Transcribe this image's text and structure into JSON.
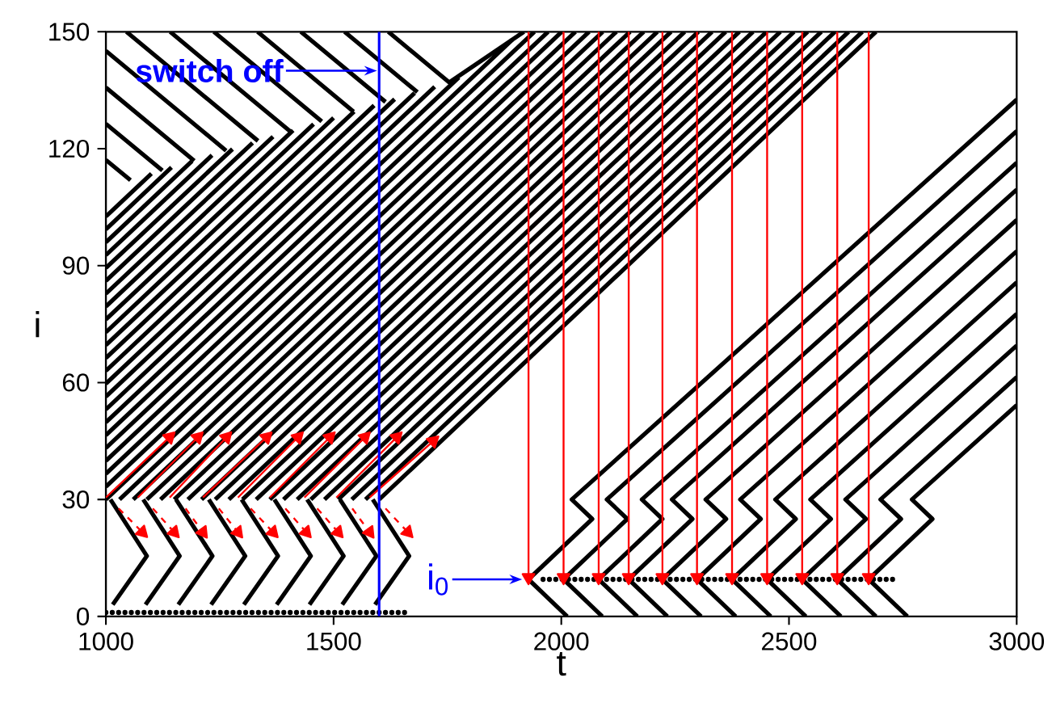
{
  "chart_data": {
    "type": "line",
    "xlabel": "t",
    "ylabel": "i",
    "xlim": [
      1000,
      3000
    ],
    "ylim": [
      0,
      150
    ],
    "xticks": [
      1000,
      1500,
      2000,
      2500,
      3000
    ],
    "yticks": [
      0,
      30,
      60,
      90,
      120,
      150
    ],
    "grid": false,
    "marker": "none",
    "ref_lines": [
      {
        "axis": "x",
        "value": 1600,
        "label": "switch off",
        "color": "#0000ff"
      }
    ],
    "annotations": [
      {
        "text": "i$_{0}$",
        "x": 1928,
        "y": 9.5
      }
    ],
    "series": [
      {
        "color": "#000000",
        "x": [
          1600,
          2691,
          null,
          1570,
          2661,
          null,
          1540,
          2631,
          null,
          1510,
          2601,
          null,
          1480,
          2571,
          null,
          1450,
          2541,
          null,
          1420,
          2511,
          null,
          1390,
          2481,
          null,
          1360,
          2451,
          null,
          1330,
          2421,
          null,
          1300,
          2391,
          null,
          1270,
          2361,
          null,
          1240,
          2331,
          null,
          1210,
          2301,
          null,
          1180,
          2271,
          null,
          1150,
          2241,
          null,
          1120,
          2211,
          null,
          1090,
          2181,
          null,
          1060,
          2151,
          null,
          1030,
          2121,
          null,
          1000,
          2091,
          null,
          1000,
          2061,
          null,
          1000,
          2031,
          null,
          1000,
          2001,
          null,
          1000,
          1971,
          null,
          1000,
          1941,
          null,
          1000,
          1893,
          null,
          1000,
          1775,
          null,
          1000,
          1722,
          null,
          1000,
          1678,
          null,
          1000,
          1634,
          null,
          1000,
          1589,
          null,
          1000,
          1545,
          null,
          1000,
          1500,
          null,
          1000,
          1456,
          null,
          1000,
          1411,
          null,
          1000,
          1367,
          null,
          1000,
          1322,
          null,
          1000,
          1278,
          null,
          1000,
          1233,
          null,
          1000,
          1189,
          null,
          1000,
          1144,
          null,
          1000,
          1100
        ],
        "values": [
          30,
          150,
          null,
          30,
          150,
          null,
          30,
          150,
          null,
          30,
          150,
          null,
          30,
          150,
          null,
          30,
          150,
          null,
          30,
          150,
          null,
          30,
          150,
          null,
          30,
          150,
          null,
          30,
          150,
          null,
          30,
          150,
          null,
          30,
          150,
          null,
          30,
          150,
          null,
          30,
          150,
          null,
          30,
          150,
          null,
          30,
          150,
          null,
          30,
          150,
          null,
          30,
          150,
          null,
          30,
          150,
          null,
          30,
          150,
          null,
          30,
          150,
          null,
          33.3,
          150,
          null,
          36.6,
          150,
          null,
          39.9,
          150,
          null,
          43.2,
          150,
          null,
          46.5,
          150,
          null,
          49.8,
          148,
          null,
          53.1,
          138.3,
          null,
          56.4,
          135.9,
          null,
          59.7,
          134.3,
          null,
          63,
          132.7,
          null,
          66.3,
          131.1,
          null,
          69.6,
          129.5,
          null,
          72.9,
          127.9,
          null,
          76.2,
          126.3,
          null,
          79.5,
          124.7,
          null,
          82.8,
          123.1,
          null,
          86.1,
          121.5,
          null,
          89.4,
          119.9,
          null,
          92.7,
          118.3,
          null,
          96,
          116.8,
          null,
          99.3,
          115.2,
          null,
          102.6,
          113.6
        ]
      },
      {
        "color": "#000000",
        "x": [
          1620,
          1754,
          1918,
          null,
          1524,
          1684,
          null,
          1428,
          1614,
          null,
          1333,
          1544,
          null,
          1237,
          1474,
          null,
          1141,
          1404,
          null,
          1045,
          1334,
          null,
          1000,
          1264,
          null,
          1000,
          1194,
          null,
          1000,
          1124,
          null,
          1000,
          1054
        ],
        "values": [
          150,
          137,
          150,
          null,
          150,
          134.5,
          null,
          150,
          132,
          null,
          150,
          129.5,
          null,
          150,
          127,
          null,
          150,
          124.5,
          null,
          150,
          122,
          null,
          145.1,
          119.5,
          null,
          135.7,
          116.9,
          null,
          126.4,
          114.4,
          null,
          117.1,
          111.9
        ]
      },
      {
        "color": "#000000",
        "x": [
          1010,
          1090,
          1015,
          null,
          1082,
          1162,
          1087,
          null,
          1154,
          1234,
          1159,
          null,
          1226,
          1306,
          1231,
          null,
          1298,
          1378,
          1303,
          null,
          1370,
          1450,
          1375,
          null,
          1442,
          1522,
          1447,
          null,
          1514,
          1594,
          1519,
          null,
          1586,
          1666,
          1591
        ],
        "values": [
          30,
          15.5,
          3,
          null,
          30,
          15.5,
          3,
          null,
          30,
          15.5,
          3,
          null,
          30,
          15.5,
          3,
          null,
          30,
          15.5,
          3,
          null,
          30,
          15.5,
          3,
          null,
          30,
          15.5,
          3,
          null,
          30,
          15.5,
          3,
          null,
          30,
          15.5,
          3
        ]
      },
      {
        "color": "#000000",
        "x": [
          2013,
          1928,
          2068,
          2023,
          3000,
          null,
          2090,
          2005,
          2145,
          2100,
          3000,
          null,
          2167,
          2082,
          2222,
          2177,
          3000,
          null,
          2233,
          2148,
          2288,
          2243,
          3000,
          null,
          2307,
          2222,
          2362,
          2317,
          3000,
          null,
          2383,
          2298,
          2438,
          2393,
          3000,
          null,
          2460,
          2375,
          2515,
          2470,
          3000,
          null,
          2537,
          2452,
          2592,
          2547,
          3000,
          null,
          2614,
          2529,
          2669,
          2624,
          3000,
          null,
          2691,
          2606,
          2746,
          2701,
          3000,
          null,
          2760,
          2675,
          2815,
          2770,
          3000
        ],
        "values": [
          0,
          9.5,
          25,
          30,
          132.6,
          null,
          0,
          9.5,
          25,
          30,
          124.5,
          null,
          0,
          9.5,
          25,
          30,
          116.4,
          null,
          0,
          9.5,
          25,
          30,
          109.5,
          null,
          0,
          9.5,
          25,
          30,
          101.7,
          null,
          0,
          9.5,
          25,
          30,
          93.7,
          null,
          0,
          9.5,
          25,
          30,
          85.7,
          null,
          0,
          9.5,
          25,
          30,
          77.6,
          null,
          0,
          9.5,
          25,
          30,
          69.5,
          null,
          0,
          9.5,
          25,
          30,
          61.4,
          null,
          0,
          9.5,
          25,
          30,
          54.2
        ]
      },
      {
        "color": "#000000",
        "line_style": "dotted",
        "x": [
          1000,
          1660
        ],
        "values": [
          1,
          1
        ]
      },
      {
        "color": "#000000",
        "line_style": "dotted",
        "x": [
          1960,
          2740
        ],
        "values": [
          9.5,
          9.5
        ]
      },
      {
        "color": "#ff0000",
        "marker": "triangle",
        "x": [
          1928,
          1928
        ],
        "values": [
          150,
          10
        ]
      },
      {
        "color": "#ff0000",
        "marker": "triangle",
        "x": [
          2005,
          2005
        ],
        "values": [
          150,
          10
        ]
      },
      {
        "color": "#ff0000",
        "marker": "triangle",
        "x": [
          2082,
          2082
        ],
        "values": [
          150,
          10
        ]
      },
      {
        "color": "#ff0000",
        "marker": "triangle",
        "x": [
          2148,
          2148
        ],
        "values": [
          150,
          10
        ]
      },
      {
        "color": "#ff0000",
        "marker": "triangle",
        "x": [
          2222,
          2222
        ],
        "values": [
          150,
          10
        ]
      },
      {
        "color": "#ff0000",
        "marker": "triangle",
        "x": [
          2298,
          2298
        ],
        "values": [
          150,
          10
        ]
      },
      {
        "color": "#ff0000",
        "marker": "triangle",
        "x": [
          2375,
          2375
        ],
        "values": [
          150,
          10
        ]
      },
      {
        "color": "#ff0000",
        "marker": "triangle",
        "x": [
          2452,
          2452
        ],
        "values": [
          150,
          10
        ]
      },
      {
        "color": "#ff0000",
        "marker": "triangle",
        "x": [
          2529,
          2529
        ],
        "values": [
          150,
          10
        ]
      },
      {
        "color": "#ff0000",
        "marker": "triangle",
        "x": [
          2606,
          2606
        ],
        "values": [
          150,
          10
        ]
      },
      {
        "color": "#ff0000",
        "marker": "triangle",
        "x": [
          2675,
          2675
        ],
        "values": [
          150,
          10
        ]
      },
      {
        "color": "#ff0000",
        "marker": "triangle",
        "x": [
          1000,
          1140
        ],
        "values": [
          30.5,
          46
        ]
      },
      {
        "color": "#ff0000",
        "marker": "triangle",
        "x": [
          1070,
          1202
        ],
        "values": [
          30.5,
          46
        ]
      },
      {
        "color": "#ff0000",
        "marker": "triangle",
        "x": [
          1140,
          1265
        ],
        "values": [
          30.5,
          46
        ]
      },
      {
        "color": "#ff0000",
        "marker": "triangle",
        "x": [
          1213,
          1353
        ],
        "values": [
          30.5,
          46
        ]
      },
      {
        "color": "#ff0000",
        "marker": "triangle",
        "x": [
          1290,
          1422
        ],
        "values": [
          30.5,
          46
        ]
      },
      {
        "color": "#ff0000",
        "marker": "triangle",
        "x": [
          1360,
          1492
        ],
        "values": [
          30.5,
          46
        ]
      },
      {
        "color": "#ff0000",
        "marker": "triangle",
        "x": [
          1436,
          1569
        ],
        "values": [
          30.5,
          46
        ]
      },
      {
        "color": "#ff0000",
        "marker": "triangle",
        "x": [
          1506,
          1639
        ],
        "values": [
          30.5,
          46
        ]
      },
      {
        "color": "#ff0000",
        "marker": "triangle",
        "x": [
          1579,
          1719
        ],
        "values": [
          30.5,
          45
        ]
      },
      {
        "color": "#ff0000",
        "marker": "triangle",
        "line_style": "dashed",
        "x": [
          1028,
          1080
        ],
        "values": [
          27.7,
          21.6
        ]
      },
      {
        "color": "#ff0000",
        "marker": "triangle",
        "line_style": "dashed",
        "x": [
          1103,
          1150
        ],
        "values": [
          27.7,
          21.6
        ]
      },
      {
        "color": "#ff0000",
        "marker": "triangle",
        "line_style": "dashed",
        "x": [
          1175,
          1213
        ],
        "values": [
          27.7,
          21.6
        ]
      },
      {
        "color": "#ff0000",
        "marker": "triangle",
        "line_style": "dashed",
        "x": [
          1248,
          1290
        ],
        "values": [
          27.7,
          21.6
        ]
      },
      {
        "color": "#ff0000",
        "marker": "triangle",
        "line_style": "dashed",
        "x": [
          1318,
          1367
        ],
        "values": [
          27.7,
          21.6
        ]
      },
      {
        "color": "#ff0000",
        "marker": "triangle",
        "line_style": "dashed",
        "x": [
          1394,
          1440
        ],
        "values": [
          27.7,
          21.6
        ]
      },
      {
        "color": "#ff0000",
        "marker": "triangle",
        "line_style": "dashed",
        "x": [
          1464,
          1510
        ],
        "values": [
          27.7,
          21.6
        ]
      },
      {
        "color": "#ff0000",
        "marker": "triangle",
        "line_style": "dashed",
        "x": [
          1541,
          1579
        ],
        "values": [
          27.7,
          21.6
        ]
      },
      {
        "color": "#ff0000",
        "marker": "triangle",
        "line_style": "dashed",
        "x": [
          1614,
          1663
        ],
        "values": [
          27.7,
          21.6
        ]
      }
    ]
  }
}
